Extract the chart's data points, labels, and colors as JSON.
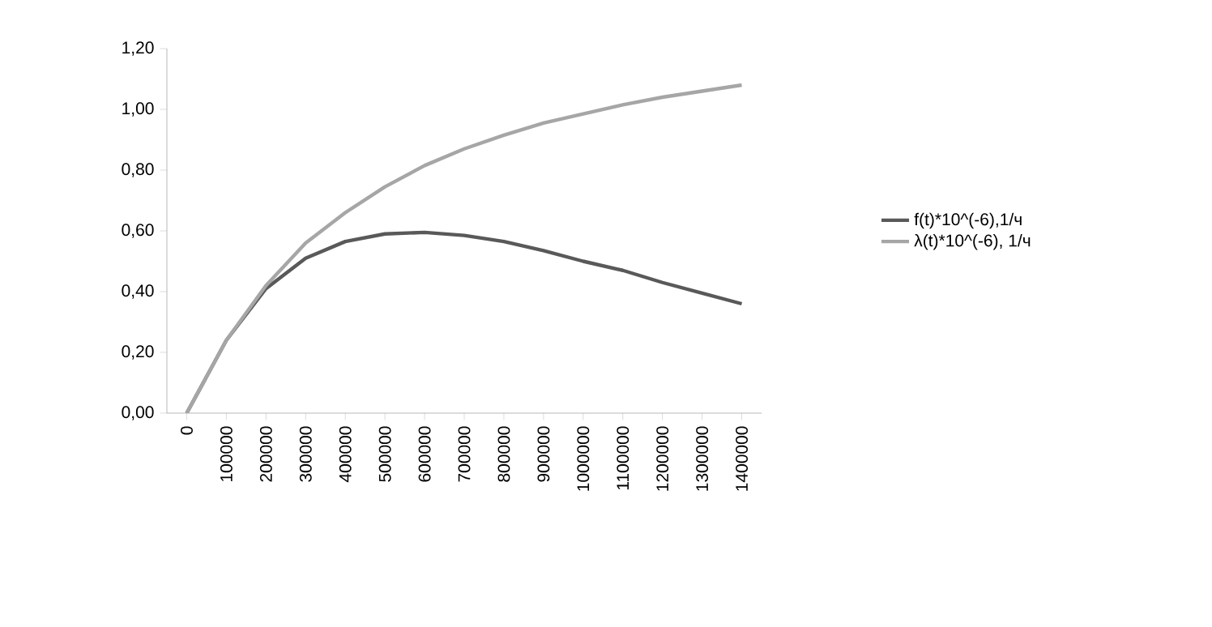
{
  "chart_data": {
    "type": "line",
    "categories": [
      "0",
      "100000",
      "200000",
      "300000",
      "400000",
      "500000",
      "600000",
      "700000",
      "800000",
      "900000",
      "1000000",
      "1100000",
      "1200000",
      "1300000",
      "1400000"
    ],
    "series": [
      {
        "name": "f(t)*10^(-6),1/ч",
        "color": "#595959",
        "values": [
          0,
          0.24,
          0.41,
          0.51,
          0.565,
          0.59,
          0.595,
          0.585,
          0.565,
          0.535,
          0.5,
          0.47,
          0.43,
          0.395,
          0.36
        ]
      },
      {
        "name": "λ(t)*10^(-6), 1/ч",
        "color": "#a6a6a6",
        "values": [
          0,
          0.24,
          0.42,
          0.56,
          0.66,
          0.745,
          0.815,
          0.87,
          0.915,
          0.955,
          0.985,
          1.015,
          1.04,
          1.06,
          1.08
        ]
      }
    ],
    "ylim": [
      0,
      1.2
    ],
    "yticks": [
      {
        "value": 0,
        "label": "0,00"
      },
      {
        "value": 0.2,
        "label": "0,20"
      },
      {
        "value": 0.4,
        "label": "0,40"
      },
      {
        "value": 0.6,
        "label": "0,60"
      },
      {
        "value": 0.8,
        "label": "0,80"
      },
      {
        "value": 1.0,
        "label": "1,00"
      },
      {
        "value": 1.2,
        "label": "1,20"
      }
    ],
    "legend": "right",
    "marker": "none",
    "line_style": "solid"
  }
}
